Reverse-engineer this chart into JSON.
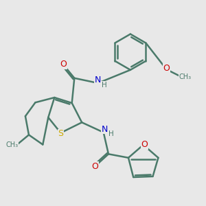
{
  "bg_color": "#e8e8e8",
  "bond_color": "#4a7a6a",
  "bond_width": 1.8,
  "atom_colors": {
    "C": "#4a7a6a",
    "N": "#0000cc",
    "O": "#cc0000",
    "S": "#ccaa00",
    "H": "#4a7a6a"
  },
  "font_size": 9
}
